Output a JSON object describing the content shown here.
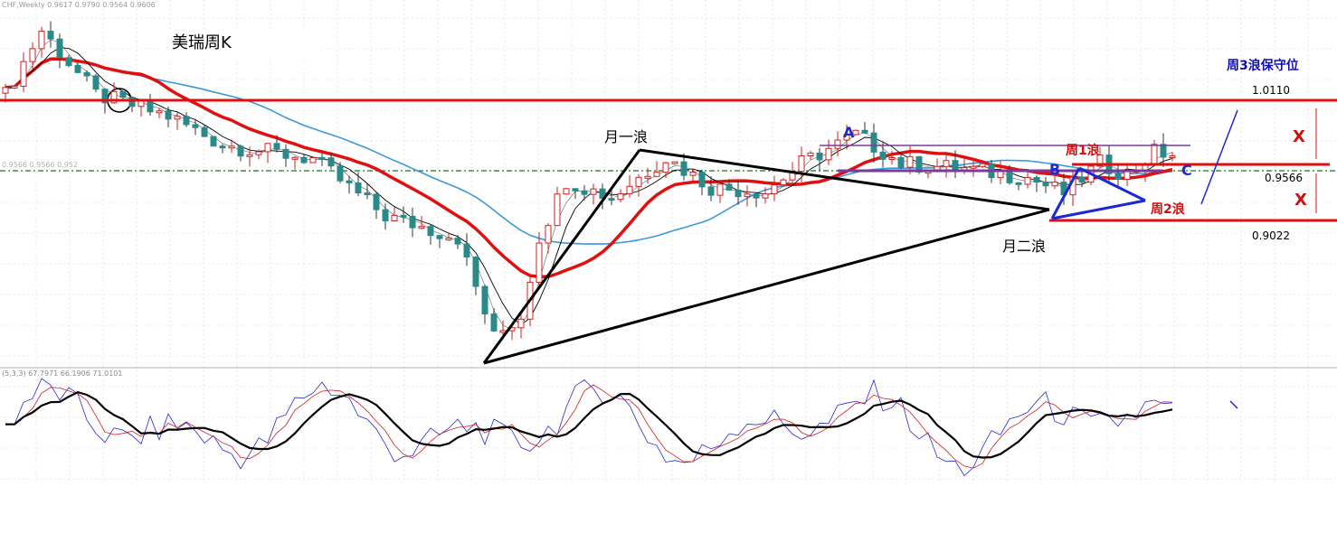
{
  "header": {
    "symbol_info": "CHF,Weekly  0.9617 0.9790 0.9564 0.9606",
    "ma_info": "0.9566 0.9566 0.952",
    "indicator_info": "(5,3,3)  67.7971 66.1906 71.0101"
  },
  "labels": {
    "title": "美瑞周K",
    "month_wave1": "月一浪",
    "month_wave2": "月二浪",
    "week_wave1": "周1浪",
    "week_wave2": "周2浪",
    "week_wave3_stop": "周3浪保守位",
    "point_a": "A",
    "point_b": "B",
    "point_c": "C",
    "x_upper": "X",
    "x_lower": "X"
  },
  "colors": {
    "bull": "#d02020",
    "bear": "#2a8a8a",
    "ma_red": "#e01010",
    "ma_blue": "#3a9ad9",
    "level": "#e01010",
    "wave_month": "#000000",
    "wave_week": "#1a2ad0",
    "range_lines": "#7a3a9a",
    "grid": "#d8d8d8"
  },
  "chart_data": {
    "type": "candlestick",
    "timeframe": "Weekly",
    "symbol": "USDCHF",
    "price_levels": [
      {
        "label": "1.0110",
        "price": 1.011
      },
      {
        "label": "0.9566",
        "price": 0.9566
      },
      {
        "label": "0.9022",
        "price": 0.9022
      }
    ],
    "ylim": [
      0.81,
      1.06
    ],
    "candles_count": 130,
    "anchors": [
      {
        "i": 0,
        "price": 1.0
      },
      {
        "i": 4,
        "price": 1.045
      },
      {
        "i": 6,
        "price": 1.03
      },
      {
        "i": 10,
        "price": 1.0
      },
      {
        "i": 18,
        "price": 0.985
      },
      {
        "i": 24,
        "price": 0.965
      },
      {
        "i": 34,
        "price": 0.955
      },
      {
        "i": 42,
        "price": 0.915
      },
      {
        "i": 50,
        "price": 0.9
      },
      {
        "i": 54,
        "price": 0.83
      },
      {
        "i": 57,
        "price": 0.845
      },
      {
        "i": 59,
        "price": 0.9
      },
      {
        "i": 62,
        "price": 0.94
      },
      {
        "i": 67,
        "price": 0.928
      },
      {
        "i": 73,
        "price": 0.956
      },
      {
        "i": 78,
        "price": 0.935
      },
      {
        "i": 84,
        "price": 0.932
      },
      {
        "i": 88,
        "price": 0.952
      },
      {
        "i": 94,
        "price": 0.972
      },
      {
        "i": 99,
        "price": 0.952
      },
      {
        "i": 106,
        "price": 0.948
      },
      {
        "i": 113,
        "price": 0.942
      },
      {
        "i": 117,
        "price": 0.931
      },
      {
        "i": 121,
        "price": 0.952
      },
      {
        "i": 124,
        "price": 0.944
      },
      {
        "i": 127,
        "price": 0.96
      },
      {
        "i": 129,
        "price": 0.958
      }
    ],
    "month_wave_lines": [
      {
        "from": {
          "i": 54,
          "price": 0.822
        },
        "to": {
          "i": 71,
          "price": 0.968
        }
      },
      {
        "from": {
          "i": 71,
          "price": 0.968
        },
        "to": {
          "i": 117,
          "price": 0.925
        }
      },
      {
        "from": {
          "i": 54,
          "price": 0.822
        },
        "to": {
          "i": 117,
          "price": 0.925
        }
      }
    ],
    "week_wave_lines": [
      {
        "from": {
          "i": 117,
          "price": 0.905
        },
        "to": {
          "i": 121,
          "price": 0.957
        }
      },
      {
        "from": {
          "i": 121,
          "price": 0.957
        },
        "to": {
          "i": 128,
          "price": 0.928
        }
      },
      {
        "from": {
          "i": 128,
          "price": 0.928
        },
        "to": {
          "i": 117,
          "price": 0.905
        }
      }
    ],
    "range_lines": [
      {
        "price": 0.971,
        "from_i": 90,
        "to_i": 131
      },
      {
        "price": 0.958,
        "from_i": 92,
        "to_i": 128
      }
    ],
    "oscillator": {
      "name": "Stochastic",
      "params": "5,3,3",
      "values": [
        67.7971,
        66.1906,
        71.0101
      ],
      "ylim": [
        0,
        100
      ]
    }
  }
}
